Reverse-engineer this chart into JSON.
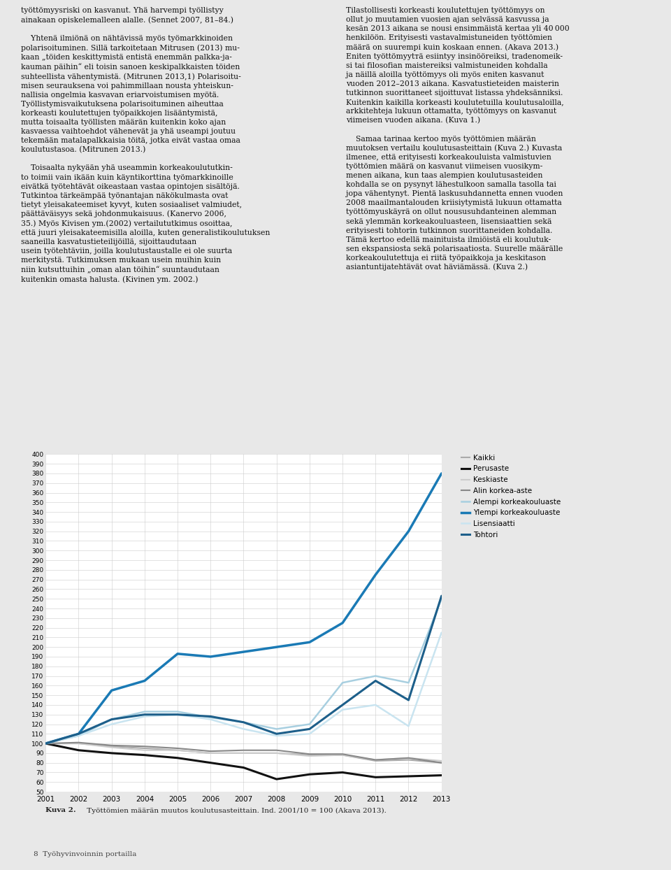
{
  "years": [
    2001,
    2002,
    2003,
    2004,
    2005,
    2006,
    2007,
    2008,
    2009,
    2010,
    2011,
    2012,
    2013
  ],
  "series": {
    "Kaikki": [
      100,
      100,
      97,
      95,
      93,
      90,
      90,
      90,
      88,
      88,
      82,
      83,
      80
    ],
    "Perusaste": [
      100,
      93,
      90,
      88,
      85,
      80,
      75,
      63,
      68,
      70,
      65,
      66,
      67
    ],
    "Keskiaste": [
      100,
      100,
      96,
      93,
      93,
      90,
      90,
      90,
      87,
      88,
      83,
      85,
      82
    ],
    "Alin korkea-aste": [
      100,
      101,
      98,
      97,
      95,
      92,
      93,
      93,
      89,
      89,
      83,
      85,
      80
    ],
    "Alempi korkeakouluaste": [
      100,
      108,
      125,
      133,
      133,
      127,
      122,
      115,
      120,
      163,
      170,
      163,
      250
    ],
    "Ylempi korkeakouluaste": [
      100,
      110,
      155,
      165,
      193,
      190,
      195,
      200,
      205,
      225,
      275,
      320,
      380
    ],
    "Lisensiaatti": [
      100,
      108,
      120,
      128,
      130,
      125,
      115,
      108,
      110,
      135,
      140,
      118,
      215
    ],
    "Tohtori": [
      100,
      110,
      125,
      130,
      130,
      128,
      122,
      110,
      115,
      140,
      165,
      145,
      253
    ]
  },
  "colors": {
    "Kaikki": "#aaaaaa",
    "Perusaste": "#111111",
    "Keskiaste": "#cccccc",
    "Alin korkea-aste": "#888888",
    "Alempi korkeakouluaste": "#a8cfe0",
    "Ylempi korkeakouluaste": "#1a7ab5",
    "Lisensiaatti": "#c9e4f0",
    "Tohtori": "#1d5f8a"
  },
  "linewidths": {
    "Kaikki": 1.5,
    "Perusaste": 2.2,
    "Keskiaste": 1.5,
    "Alin korkea-aste": 1.5,
    "Alempi korkeakouluaste": 1.8,
    "Ylempi korkeakouluaste": 2.5,
    "Lisensiaatti": 1.8,
    "Tohtori": 2.2
  },
  "ylim": [
    50,
    400
  ],
  "yticks": [
    50,
    60,
    70,
    80,
    90,
    100,
    110,
    120,
    130,
    140,
    150,
    160,
    170,
    180,
    190,
    200,
    210,
    220,
    230,
    240,
    250,
    260,
    270,
    280,
    290,
    300,
    310,
    320,
    330,
    340,
    350,
    360,
    370,
    380,
    390,
    400
  ],
  "caption_bold": "Kuva 2.",
  "caption_normal": " Työttömien määrän muutos koulutusasteittain. Ind. 2001/10 = 100 (Akava 2013).",
  "page_text": "8  Työhyvinvoinnin portailla",
  "background_color": "#e8e8e8",
  "chart_bg": "#ffffff",
  "grid_color": "#cccccc",
  "text_left_col": [
    "työttömyysriski on kasvanut. Yhä harvempi työllistyy",
    "ainakaan opiskelemalleen alalle. (Sennet 2007, 81–84.)",
    "",
    "    Yhtenä ilmiönä on nähtävissä myös työmarkkinoiden",
    "polarisoituminen. Sillä tarkoitetaan Mitrusen (2013) mu-",
    "kaan „töiden keskittymistä entistä enemmän palkka­ja-",
    "kauman päihin“ eli toisin sanoen keskipalkkaisten töiden",
    "suhteellista vähentymistä. (Mitrunen 2013,1) Polarisoitu-",
    "misen seurauksena voi pahimmillaan nousta yhteiskun-",
    "nallisia ongelmia kasvavan eriarvoistumisen myötä.",
    "Työllistymisvaikutuksena polarisoituminen aiheuttaa",
    "korkeasti koulutettujen työpaikkojen lisääntymistä,",
    "mutta toisaalta työllisten määrän kuitenkin koko ajan",
    "kasvaessa vaihtoehdot vähenevät ja yhä useampi joutuu",
    "tekemään matalapalkkaisia töitä, jotka eivät vastaa omaa",
    "koulutustasoa. (Mitrunen 2013.)",
    "",
    "    Toisaalta nykyään yhä useammin korkeakoulututkin-",
    "to toimii vain ikään kuin käyntikorttina työmarkkinoille",
    "eivätkä työtehtävät oikeastaan vastaa opintojen sisältöjä.",
    "Tutkintoa tärkeämpää työnantajan näkökulmasta ovat",
    "tietyt yleisakateemiset kyvyt, kuten sosiaaliset valmiudet,",
    "päättäväisyys sekä johdonmukaisuus. (Kanervo 2006,",
    "35.) Myös Kivisen ym.(2002) vertailututkimus osoittaa,",
    "että juuri yleisakateemisilla aloilla, kuten generalistikoulutuksen",
    "saaneilla kasvatustieteilijöillä, sijoittaudutaan",
    "usein työtehtäviin, joilla koulutustaustalle ei ole suurta",
    "merkitystä. Tutkimuksen mukaan usein muihin kuin",
    "niin kutsuttuihin „oman alan töihin“ suuntaudutaan",
    "kuitenkin omasta halusta. (Kivinen ym. 2002.)"
  ],
  "text_right_col": [
    "Tilastollisesti korkeasti koulutettujen työttömyys on",
    "ollut jo muutamien vuosien ajan selvässä kasvussa ja",
    "kesän 2013 aikana se nousi ensimmäistä kertaa yli 40 000",
    "henkilöön. Erityisesti vastavalmistuneiden työttömien",
    "määrä on suurempi kuin koskaan ennen. (Akava 2013.)",
    "Eniten työttömyytтä esiintyy insinööreiksi, tradenomeik-",
    "si tai filosofian maistereiksi valmistuneiden kohdalla",
    "ja näillä aloilla työttömyys oli myös eniten kasvanut",
    "vuoden 2012–2013 aikana. Kasvatustieteiden maisterin",
    "tutkinnon suorittaneet sijoittuvat listassa yhdeksänniksi.",
    "Kuitenkin kaikilla korkeasti koulutetuilla koulutusaloilla,",
    "arkkitehteja lukuun ottamatta, työttömyys on kasvanut",
    "viimeisen vuoden aikana. (Kuva 1.)",
    "",
    "    Samaa tarinaa kertoo myös työttömien määrän",
    "muutoksen vertailu koulutusasteittain (Kuva 2.) Kuvasta",
    "ilmenee, että erityisesti korkeakouluista valmistuvien",
    "työttömien määrä on kasvanut viimeisen vuosikym-",
    "menen aikana, kun taas alempien koulutusasteiden",
    "kohdalla se on pysynyt lähestulkoon samalla tasolla tai",
    "jopa vähentynyt. Pientä laskusuhdannetta ennen vuoden",
    "2008 maailmantalouden kriisiytymistä lukuun ottamatta",
    "työttömyuskäyrä on ollut noususuhdanteinen alemman",
    "sekä ylemmän korkeakouluasteen, lisensiaattien sekä",
    "erityisesti tohtorin tutkinnon suorittaneiden kohdalla.",
    "Tämä kertoo edellä mainituista ilmiöistä eli koulutuk-",
    "sen ekspansiosta sekä polarisaatiosta. Suurelle määrälle",
    "korkeakoulutettuja ei riitä työpaikkoja ja keskitason",
    "asiantuntijatehtävät ovat häviämässä. (Kuva 2.)"
  ]
}
